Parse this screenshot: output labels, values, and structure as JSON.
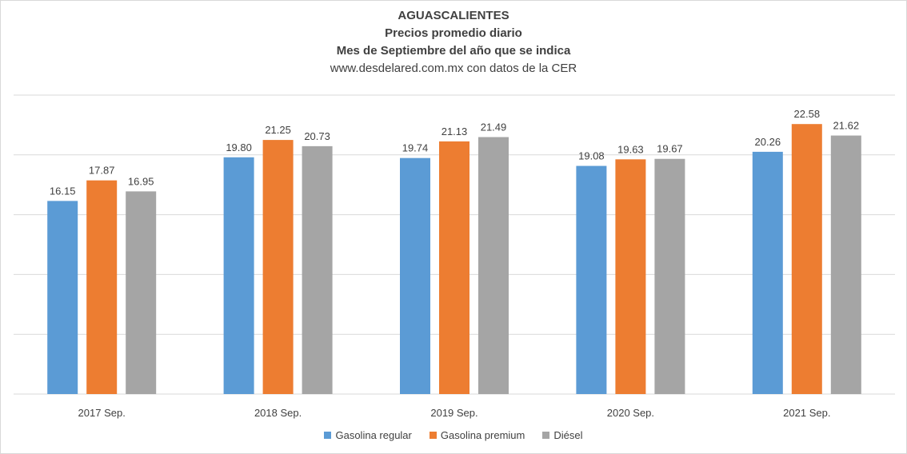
{
  "chart_data": {
    "type": "bar",
    "title": "AGUASCALIENTES",
    "subtitle_lines": [
      "Precios promedio diario",
      "Mes de Septiembre del año que se indica"
    ],
    "source": "www.desdelared.com.mx con datos de la CER",
    "categories": [
      "2017 Sep.",
      "2018 Sep.",
      "2019 Sep.",
      "2020 Sep.",
      "2021 Sep."
    ],
    "series": [
      {
        "name": "Gasolina regular",
        "color": "#5b9bd5",
        "values": [
          16.15,
          19.8,
          19.74,
          19.08,
          20.26
        ]
      },
      {
        "name": "Gasolina premium",
        "color": "#ed7d31",
        "values": [
          17.87,
          21.25,
          21.13,
          19.63,
          22.58
        ]
      },
      {
        "name": "Diésel",
        "color": "#a5a5a5",
        "values": [
          16.95,
          20.73,
          21.49,
          19.67,
          21.62
        ]
      }
    ],
    "ylim": [
      0,
      25
    ],
    "grid": true,
    "legend_position": "bottom",
    "xlabel": "",
    "ylabel": ""
  }
}
